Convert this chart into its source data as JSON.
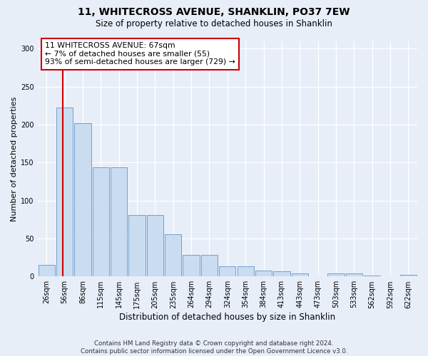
{
  "title1": "11, WHITECROSS AVENUE, SHANKLIN, PO37 7EW",
  "title2": "Size of property relative to detached houses in Shanklin",
  "xlabel": "Distribution of detached houses by size in Shanklin",
  "ylabel": "Number of detached properties",
  "footnote": "Contains HM Land Registry data © Crown copyright and database right 2024.\nContains public sector information licensed under the Open Government Licence v3.0.",
  "bar_labels": [
    "26sqm",
    "56sqm",
    "86sqm",
    "115sqm",
    "145sqm",
    "175sqm",
    "205sqm",
    "235sqm",
    "264sqm",
    "294sqm",
    "324sqm",
    "354sqm",
    "384sqm",
    "413sqm",
    "443sqm",
    "473sqm",
    "503sqm",
    "533sqm",
    "562sqm",
    "592sqm",
    "622sqm"
  ],
  "bar_values": [
    15,
    222,
    202,
    144,
    144,
    81,
    81,
    56,
    28,
    28,
    13,
    13,
    8,
    7,
    4,
    0,
    4,
    4,
    1,
    0,
    2
  ],
  "bar_color": "#c9dcf0",
  "bar_edge_color": "#6096c8",
  "annotation_text": "11 WHITECROSS AVENUE: 67sqm\n← 7% of detached houses are smaller (55)\n93% of semi-detached houses are larger (729) →",
  "annotation_box_color": "#ffffff",
  "annotation_box_edge": "#cc0000",
  "vline_color": "#cc0000",
  "ylim": [
    0,
    310
  ],
  "yticks": [
    0,
    50,
    100,
    150,
    200,
    250,
    300
  ],
  "background_color": "#e8eef8",
  "grid_color": "#ffffff",
  "title1_fontsize": 10,
  "title2_fontsize": 8.5,
  "xlabel_fontsize": 8.5,
  "ylabel_fontsize": 8,
  "tick_fontsize": 7,
  "annotation_fontsize": 7.8,
  "footnote_fontsize": 6.2
}
